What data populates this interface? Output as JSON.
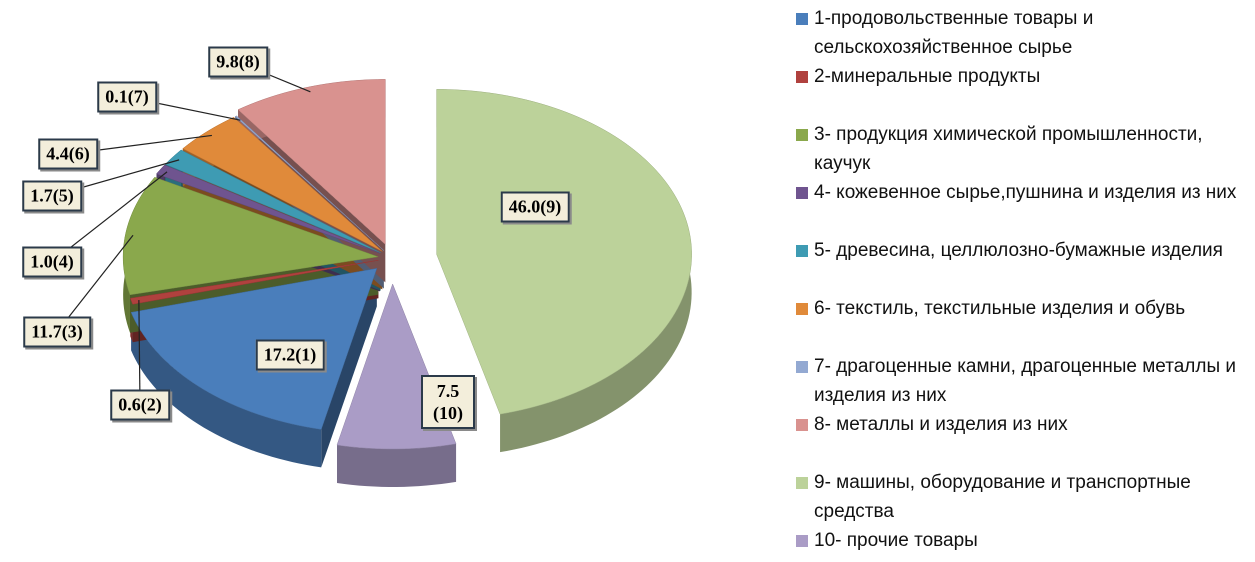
{
  "chart_data": {
    "type": "pie",
    "categories": [
      "1-продовольственные товары и сельскохозяйственное сырье",
      "2-минеральные продукты",
      "3- продукция химической промышленности, каучук",
      "4- кожевенное сырье,пушнина и изделия из них",
      "5- древесина, целлюлозно-бумажные изделия",
      "6- текстиль, текстильные изделия и обувь",
      "7- драгоценные камни, драгоценные металлы и изделия из них",
      "8- металлы и изделия из них",
      "9- машины, оборудование и транспортные средства",
      "10- прочие товары"
    ],
    "values": [
      17.2,
      0.6,
      11.7,
      1.0,
      1.7,
      4.4,
      0.1,
      9.8,
      46.0,
      7.5
    ],
    "value_labels": [
      "17.2(1)",
      "0.6(2)",
      "11.7(3)",
      "1.0(4)",
      "1.7(5)",
      "4.4(6)",
      "0.1(7)",
      "9.8(8)",
      "46.0(9)",
      "7.5 (10)"
    ],
    "colors": [
      "#4a7ebb",
      "#b0413e",
      "#8aa84c",
      "#6f548f",
      "#3e9bb3",
      "#e08a3a",
      "#93a9d2",
      "#d9928f",
      "#bcd29a",
      "#aa9cc6"
    ],
    "legend": "right"
  }
}
